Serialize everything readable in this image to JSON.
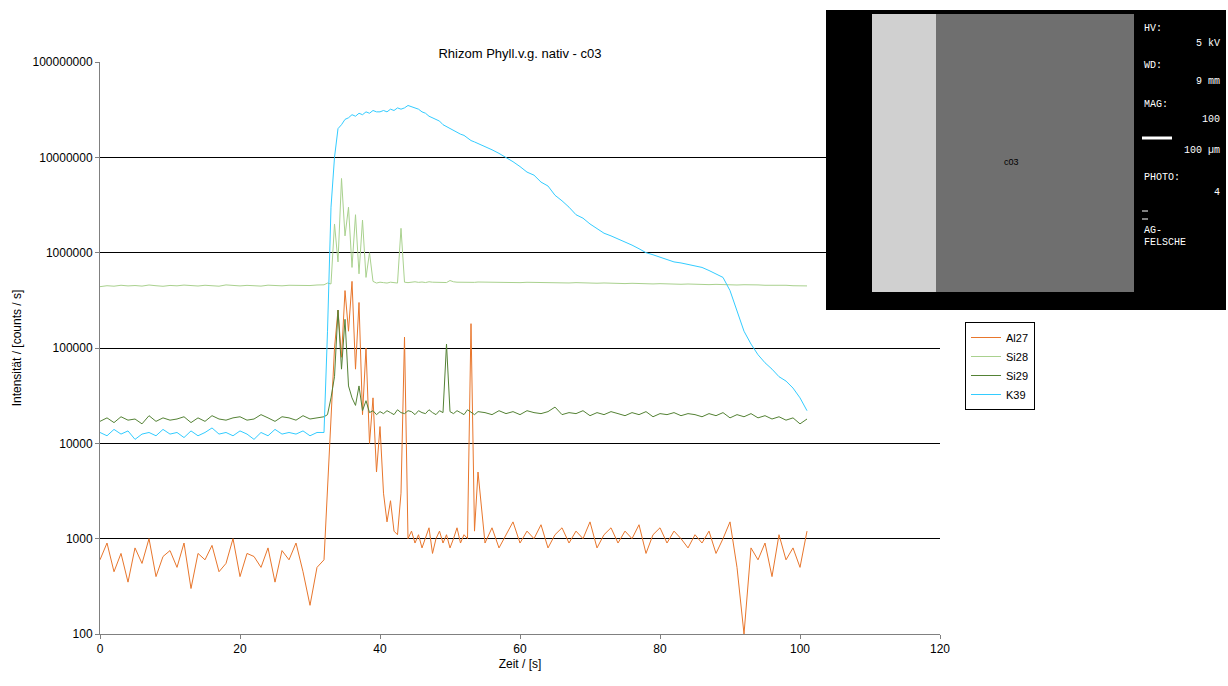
{
  "chart_data": {
    "type": "line",
    "title": "Rhizom Phyll.v.g. nativ - c03",
    "x_label": "Zeit / [s]",
    "y_label": "Intensität / [counts / s]",
    "x": [
      0,
      1,
      2,
      3,
      4,
      5,
      6,
      7,
      8,
      9,
      10,
      11,
      12,
      13,
      14,
      15,
      16,
      17,
      18,
      19,
      20,
      21,
      22,
      23,
      24,
      25,
      26,
      27,
      28,
      29,
      30,
      31,
      32,
      32.5,
      33,
      33.5,
      34,
      34.5,
      35,
      35.5,
      36,
      36.5,
      37,
      37.5,
      38,
      38.5,
      39,
      39.5,
      40,
      40.5,
      41,
      41.5,
      42,
      42.5,
      43,
      43.5,
      44,
      44.5,
      45,
      45.5,
      46,
      46.5,
      47,
      47.5,
      48,
      48.5,
      49,
      49.5,
      50,
      50.5,
      51,
      51.5,
      52,
      52.5,
      53,
      53.5,
      54,
      55,
      56,
      57,
      58,
      59,
      60,
      61,
      62,
      63,
      64,
      65,
      66,
      67,
      68,
      69,
      70,
      71,
      72,
      73,
      74,
      75,
      76,
      77,
      78,
      79,
      80,
      81,
      82,
      83,
      84,
      85,
      86,
      87,
      88,
      89,
      90,
      91,
      92,
      93,
      94,
      95,
      96,
      97,
      98,
      99,
      100,
      101
    ],
    "series": [
      {
        "name": "Al27",
        "color": "#e8762c",
        "values": [
          600,
          900,
          450,
          700,
          350,
          800,
          550,
          1000,
          400,
          650,
          750,
          500,
          900,
          300,
          700,
          600,
          850,
          450,
          550,
          1000,
          400,
          700,
          650,
          500,
          800,
          350,
          750,
          600,
          900,
          450,
          200,
          500,
          600,
          3000,
          20000,
          100000,
          250000,
          80000,
          400000,
          150000,
          500000,
          60000,
          300000,
          20000,
          100000,
          10000,
          30000,
          5000,
          15000,
          3000,
          1500,
          2500,
          1200,
          1100,
          3000,
          130000,
          1000,
          1200,
          900,
          1100,
          800,
          1000,
          1300,
          700,
          1000,
          1200,
          900,
          1100,
          800,
          1000,
          1300,
          900,
          1100,
          1000,
          180000,
          1200,
          5000,
          900,
          1300,
          800,
          1100,
          1500,
          900,
          1200,
          1000,
          1400,
          800,
          1100,
          1300,
          900,
          1200,
          1000,
          1500,
          800,
          1100,
          1300,
          900,
          1200,
          1000,
          1400,
          700,
          1100,
          1300,
          900,
          1200,
          1000,
          800,
          1100,
          900,
          1200,
          700,
          1000,
          1500,
          500,
          100,
          800,
          600,
          900,
          400,
          1100,
          600,
          800,
          500,
          1200
        ]
      },
      {
        "name": "Si28",
        "color": "#a9d18e",
        "values": [
          440000,
          450000,
          445000,
          455000,
          448000,
          452000,
          446000,
          458000,
          450000,
          444000,
          453000,
          449000,
          457000,
          451000,
          447000,
          455000,
          450000,
          445000,
          459000,
          452000,
          448000,
          454000,
          450000,
          446000,
          456000,
          451000,
          449000,
          455000,
          453000,
          447000,
          452000,
          458000,
          460000,
          480000,
          470000,
          2000000,
          800000,
          6000000,
          1500000,
          3000000,
          700000,
          2500000,
          600000,
          2200000,
          550000,
          1000000,
          500000,
          480000,
          490000,
          485000,
          480000,
          490000,
          485000,
          480000,
          1800000,
          490000,
          485000,
          490000,
          495000,
          488000,
          492000,
          486000,
          495000,
          490000,
          488000,
          494000,
          490000,
          486000,
          510000,
          495000,
          490000,
          488000,
          492000,
          486000,
          490000,
          488000,
          492000,
          490000,
          488000,
          492000,
          486000,
          490000,
          485000,
          489000,
          487000,
          484000,
          488000,
          483000,
          486000,
          481000,
          485000,
          480000,
          482000,
          478000,
          481000,
          476000,
          479000,
          474000,
          477000,
          472000,
          475000,
          470000,
          473000,
          468000,
          471000,
          466000,
          469000,
          464000,
          467000,
          462000,
          465000,
          460000,
          463000,
          458000,
          461000,
          456000,
          459000,
          455000,
          457000,
          452000,
          455000,
          450000,
          453000,
          448000
        ]
      },
      {
        "name": "Si29",
        "color": "#548235",
        "values": [
          17000,
          18500,
          16500,
          19000,
          17500,
          18000,
          16000,
          19500,
          17000,
          18500,
          17500,
          18000,
          19000,
          16500,
          18500,
          17000,
          19500,
          18000,
          17500,
          18500,
          19000,
          17500,
          18000,
          20000,
          18500,
          17000,
          19000,
          18500,
          17500,
          19500,
          18000,
          18500,
          19000,
          20000,
          30000,
          50000,
          250000,
          60000,
          200000,
          40000,
          30000,
          25000,
          40000,
          22000,
          28000,
          21000,
          22000,
          20000,
          21500,
          20500,
          22000,
          21000,
          20000,
          22500,
          21000,
          20500,
          22000,
          21500,
          20000,
          22000,
          21000,
          20500,
          22500,
          21000,
          20000,
          22000,
          21000,
          110000,
          21500,
          20500,
          22000,
          21000,
          20000,
          22500,
          21000,
          20000,
          21500,
          21000,
          20000,
          22000,
          20500,
          21500,
          20000,
          22000,
          21000,
          20500,
          21500,
          24000,
          20000,
          21000,
          20500,
          22000,
          19500,
          21000,
          20000,
          21500,
          20500,
          19500,
          21000,
          20000,
          21500,
          19000,
          20500,
          20000,
          21000,
          19500,
          20500,
          20000,
          19000,
          20500,
          19500,
          21000,
          18500,
          20000,
          19000,
          20500,
          18500,
          19500,
          18000,
          19000,
          17500,
          18500,
          16000,
          18000
        ]
      },
      {
        "name": "K39",
        "color": "#33ccff",
        "values": [
          13000,
          12000,
          14000,
          12500,
          13500,
          11000,
          12500,
          13000,
          12000,
          14000,
          12500,
          13000,
          11500,
          13500,
          12000,
          13000,
          14500,
          12500,
          13000,
          12000,
          13500,
          12500,
          11000,
          13000,
          12000,
          14000,
          12500,
          13000,
          12500,
          13500,
          12000,
          13000,
          13000,
          150000,
          3000000,
          10000000,
          20000000,
          22000000,
          25000000,
          26000000,
          28000000,
          27000000,
          29000000,
          28000000,
          30000000,
          29000000,
          31000000,
          30000000,
          30000000,
          31000000,
          30000000,
          32000000,
          31000000,
          33000000,
          32000000,
          33000000,
          35000000,
          34000000,
          33000000,
          32000000,
          30000000,
          29000000,
          27000000,
          26000000,
          25000000,
          24000000,
          22000000,
          21000000,
          20000000,
          19000000,
          18500000,
          17500000,
          17000000,
          16000000,
          15000000,
          14500000,
          14000000,
          13000000,
          12000000,
          11000000,
          10000000,
          9000000,
          8000000,
          7000000,
          6500000,
          5500000,
          5000000,
          4000000,
          3500000,
          3000000,
          2500000,
          2300000,
          2000000,
          1800000,
          1600000,
          1500000,
          1400000,
          1300000,
          1200000,
          1100000,
          1000000,
          950000,
          900000,
          850000,
          800000,
          780000,
          750000,
          720000,
          700000,
          650000,
          600000,
          550000,
          400000,
          250000,
          150000,
          110000,
          85000,
          70000,
          60000,
          50000,
          45000,
          38000,
          30000,
          22000
        ]
      }
    ],
    "xlim": [
      0,
      120
    ],
    "xticks": [
      0,
      20,
      40,
      60,
      80,
      100,
      120
    ],
    "ylim": [
      100,
      100000000
    ],
    "yticks": [
      100,
      1000,
      10000,
      100000,
      1000000,
      10000000,
      100000000
    ],
    "log": "y",
    "grid": "y",
    "legend": "right",
    "inset": {
      "label": "c03",
      "fields": [
        [
          "HV:",
          "5 kV"
        ],
        [
          "WD:",
          "9 mm"
        ],
        [
          "MAG:",
          "100"
        ]
      ],
      "scale_bar": "100 µm",
      "photo": [
        "PHOTO:",
        "4"
      ],
      "footer": [
        "AG-",
        "FELSCHE"
      ]
    }
  }
}
